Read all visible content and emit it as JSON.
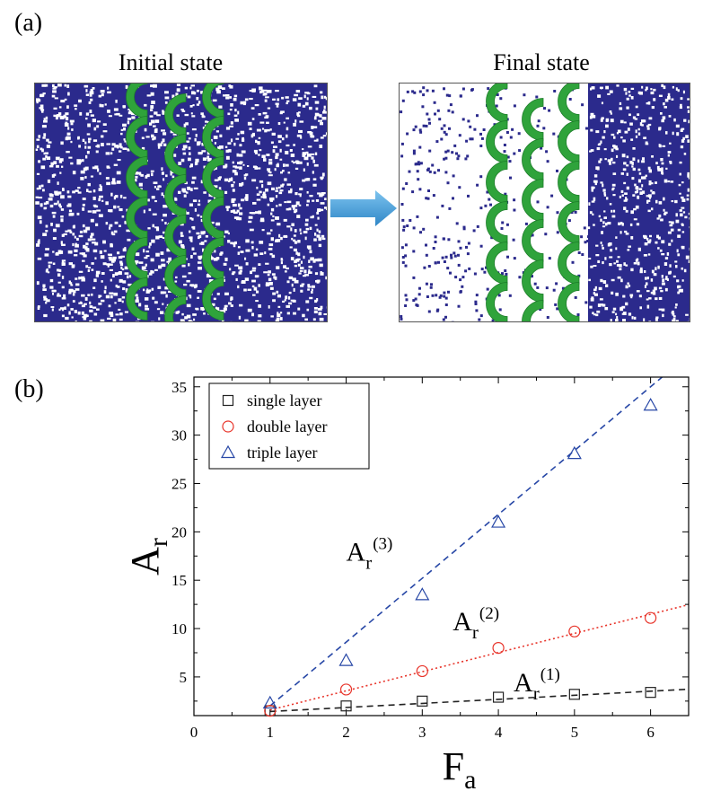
{
  "panel_a": {
    "label": "(a)",
    "initial_title": "Initial state",
    "final_title": "Final state",
    "colors": {
      "particle": "#2b2a8c",
      "gear": "#2fa33b",
      "arrow": "#4aa3df"
    }
  },
  "panel_b": {
    "label": "(b)"
  },
  "chart_data": {
    "type": "scatter",
    "xlabel_main": "F",
    "xlabel_sub": "a",
    "ylabel_main": "A",
    "ylabel_sub": "r",
    "xlim": [
      0,
      6.5
    ],
    "ylim": [
      1,
      36
    ],
    "x_ticks": [
      0,
      1,
      2,
      3,
      4,
      5,
      6
    ],
    "y_ticks": [
      5,
      10,
      15,
      20,
      25,
      30,
      35
    ],
    "legend_position": "top-left",
    "series": [
      {
        "name": "single layer",
        "marker": "square",
        "color": "#222222",
        "x": [
          1,
          2,
          3,
          4,
          5,
          6
        ],
        "y": [
          1.5,
          2.0,
          2.5,
          2.9,
          3.2,
          3.4
        ],
        "fit": {
          "slope": 0.42,
          "intercept": 1.0,
          "style": "dashed"
        },
        "annotation": {
          "main": "A",
          "sub": "r",
          "sup": "(1)",
          "at": [
            4.2,
            3.5
          ]
        }
      },
      {
        "name": "double layer",
        "marker": "circle",
        "color": "#e8342a",
        "x": [
          1,
          2,
          3,
          4,
          5,
          6
        ],
        "y": [
          1.5,
          3.7,
          5.6,
          8.0,
          9.7,
          11.1
        ],
        "fit": {
          "slope": 1.98,
          "intercept": -0.4,
          "style": "dotted"
        },
        "annotation": {
          "main": "A",
          "sub": "r",
          "sup": "(2)",
          "at": [
            3.4,
            9.8
          ]
        }
      },
      {
        "name": "triple layer",
        "marker": "triangle",
        "color": "#2747a6",
        "x": [
          1,
          2,
          3,
          4,
          5,
          6
        ],
        "y": [
          2.3,
          6.7,
          13.5,
          21.0,
          28.1,
          33.1
        ],
        "fit": {
          "slope": 6.6,
          "intercept": -4.6,
          "style": "dashed"
        },
        "annotation": {
          "main": "A",
          "sub": "r",
          "sup": "(3)",
          "at": [
            2.0,
            17.0
          ]
        }
      }
    ]
  }
}
